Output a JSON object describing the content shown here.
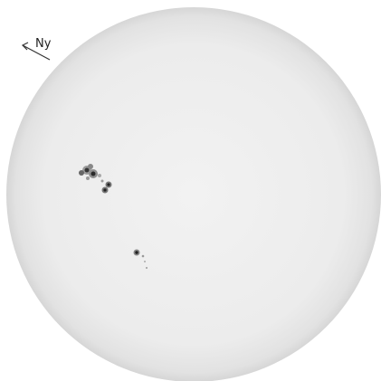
{
  "annotation": {
    "direction_label": "Ny"
  }
}
